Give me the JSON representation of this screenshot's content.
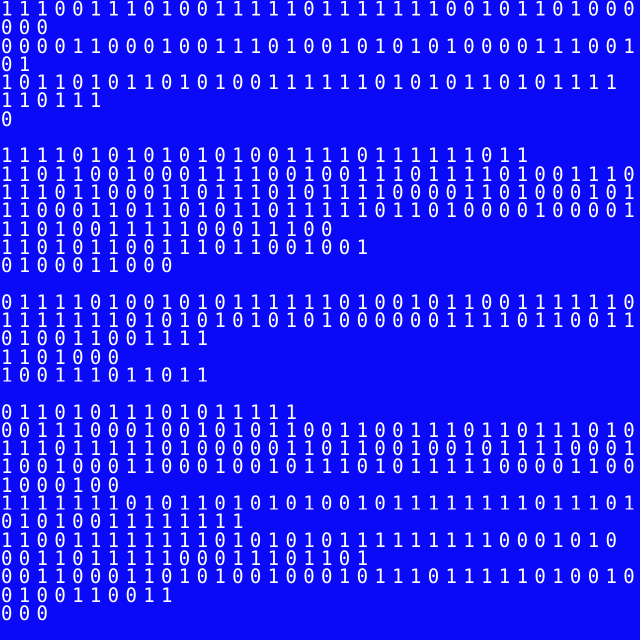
{
  "screen": {
    "background_color": "#0a0af8",
    "text_color": "#ffffff",
    "blocks": [
      {
        "lines": [
          "111001110100111110111111100101101000",
          "000",
          "000011000100111010010101010000111001",
          "01",
          "10110101101010011111101010110101111",
          "110111",
          "0"
        ]
      },
      {
        "lines": [
          "111101010101010011110111111011",
          "110110010001111001001110111101001110",
          "111011000110111010111100001101000101",
          "110001101101011011111011010000100001",
          "1101001111100011100",
          "110101100111011001001",
          "0100011000"
        ]
      },
      {
        "lines": [
          "011110100101011111101001011001111110",
          "111111101010101010100000011110110011",
          "010011001111",
          "1101000",
          "100111011011"
        ]
      },
      {
        "lines": [
          "01101011101011111",
          "001110001001010110011001110110111010",
          "111011111010000011011001001011110001",
          "100100011000100101110101111100001100",
          "1000100",
          "111111101011010101001011111111011101",
          "01010011111111",
          "11001111111101010101111111110001010",
          "001101111100011101101",
          "001100011010100100010111011111010010",
          "0100110011",
          "000"
        ]
      }
    ]
  }
}
